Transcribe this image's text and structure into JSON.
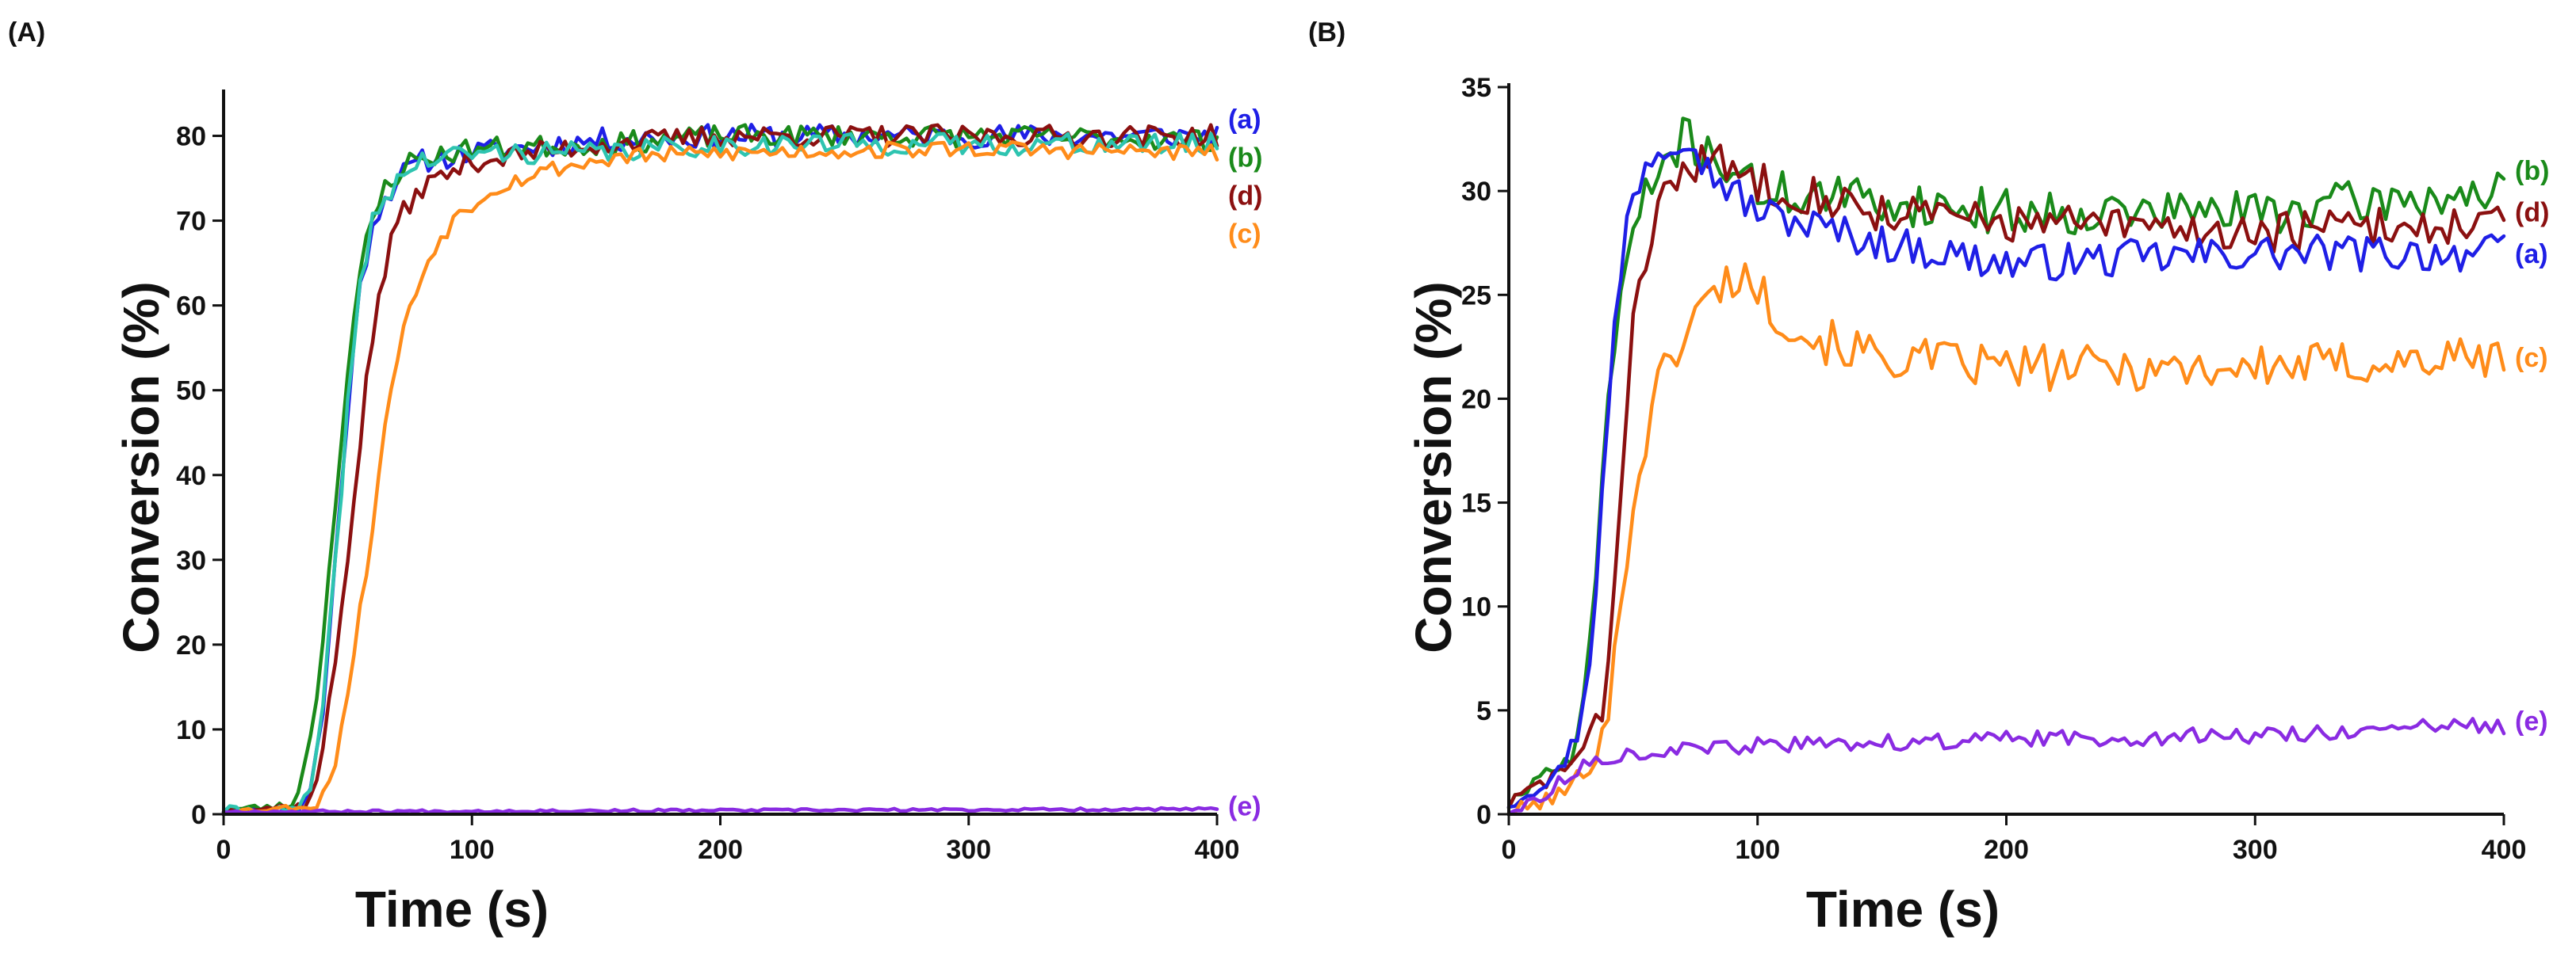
{
  "chart_data": [
    {
      "type": "line",
      "panel_label": "(A)",
      "xlabel": "Time (s)",
      "ylabel": "Conversion (%)",
      "xlim": [
        0,
        400
      ],
      "ylim": [
        0,
        85
      ],
      "xticks": [
        0,
        100,
        200,
        300,
        400
      ],
      "yticks": [
        0,
        10,
        20,
        30,
        40,
        50,
        60,
        70,
        80
      ],
      "grid": false,
      "series": [
        {
          "name": "(a)",
          "color": "#1f1fe6",
          "end_label_value": 82,
          "noise": 1.4,
          "seed": 11,
          "points": [
            [
              0,
              0.5
            ],
            [
              30,
              0.5
            ],
            [
              35,
              3
            ],
            [
              40,
              12
            ],
            [
              45,
              30
            ],
            [
              50,
              48
            ],
            [
              55,
              62
            ],
            [
              60,
              70
            ],
            [
              70,
              75
            ],
            [
              80,
              77
            ],
            [
              100,
              78
            ],
            [
              150,
              79.5
            ],
            [
              200,
              80
            ],
            [
              300,
              80
            ],
            [
              400,
              80
            ]
          ]
        },
        {
          "name": "(b)",
          "color": "#1a8a1a",
          "end_label_value": 77.5,
          "noise": 1.3,
          "seed": 23,
          "points": [
            [
              0,
              0.5
            ],
            [
              28,
              1
            ],
            [
              33,
              6
            ],
            [
              38,
              15
            ],
            [
              43,
              30
            ],
            [
              48,
              47
            ],
            [
              53,
              60
            ],
            [
              58,
              68
            ],
            [
              65,
              74
            ],
            [
              75,
              77
            ],
            [
              100,
              78.5
            ],
            [
              150,
              79
            ],
            [
              200,
              80
            ],
            [
              300,
              80
            ],
            [
              400,
              79.5
            ]
          ]
        },
        {
          "name": "(d)",
          "color": "#8b1010",
          "end_label_value": 73,
          "noise": 1.3,
          "seed": 37,
          "points": [
            [
              0,
              0.5
            ],
            [
              33,
              1
            ],
            [
              38,
              4
            ],
            [
              45,
              18
            ],
            [
              52,
              36
            ],
            [
              58,
              52
            ],
            [
              63,
              62
            ],
            [
              70,
              70
            ],
            [
              80,
              74
            ],
            [
              100,
              77
            ],
            [
              150,
              79
            ],
            [
              200,
              80
            ],
            [
              300,
              80
            ],
            [
              400,
              80
            ]
          ]
        },
        {
          "name": "",
          "color": "#2ec4b0",
          "end_label_value": null,
          "noise": 1.3,
          "seed": 41,
          "points": [
            [
              0,
              0.5
            ],
            [
              30,
              0.5
            ],
            [
              35,
              3
            ],
            [
              40,
              12
            ],
            [
              45,
              30
            ],
            [
              50,
              48
            ],
            [
              55,
              62
            ],
            [
              60,
              70
            ],
            [
              70,
              75
            ],
            [
              80,
              77
            ],
            [
              100,
              78
            ],
            [
              150,
              78
            ],
            [
              200,
              79
            ],
            [
              300,
              79
            ],
            [
              400,
              79
            ]
          ]
        },
        {
          "name": "(c)",
          "color": "#ff8c1a",
          "end_label_value": 68.5,
          "noise": 1.0,
          "seed": 53,
          "points": [
            [
              0,
              0.3
            ],
            [
              38,
              1
            ],
            [
              45,
              6
            ],
            [
              52,
              18
            ],
            [
              60,
              34
            ],
            [
              67,
              50
            ],
            [
              75,
              60
            ],
            [
              85,
              67
            ],
            [
              95,
              71
            ],
            [
              110,
              74
            ],
            [
              130,
              76
            ],
            [
              160,
              77.5
            ],
            [
              200,
              78
            ],
            [
              300,
              78.5
            ],
            [
              400,
              78
            ]
          ]
        },
        {
          "name": "(e)",
          "color": "#8a2be2",
          "end_label_value": 1,
          "noise": 0.45,
          "seed": 67,
          "points": [
            [
              0,
              0.3
            ],
            [
              400,
              0.6
            ]
          ]
        }
      ]
    },
    {
      "type": "line",
      "panel_label": "(B)",
      "xlabel": "Time (s)",
      "ylabel": "Conversion (%)",
      "xlim": [
        0,
        400
      ],
      "ylim": [
        0,
        35
      ],
      "xticks": [
        0,
        100,
        200,
        300,
        400
      ],
      "yticks": [
        0,
        5,
        10,
        15,
        20,
        25,
        30,
        35
      ],
      "grid": false,
      "series": [
        {
          "name": "(b)",
          "color": "#1a8a1a",
          "end_label_value": 31,
          "noise": 1.1,
          "seed": 71,
          "points": [
            [
              0,
              0.5
            ],
            [
              10,
              1.5
            ],
            [
              20,
              2
            ],
            [
              25,
              3
            ],
            [
              30,
              5
            ],
            [
              35,
              12
            ],
            [
              40,
              20
            ],
            [
              45,
              25
            ],
            [
              50,
              28
            ],
            [
              60,
              31
            ],
            [
              70,
              32.5
            ],
            [
              80,
              32
            ],
            [
              90,
              31
            ],
            [
              100,
              30
            ],
            [
              150,
              29.5
            ],
            [
              200,
              29
            ],
            [
              300,
              29
            ],
            [
              400,
              30
            ]
          ]
        },
        {
          "name": "(d)",
          "color": "#8b1010",
          "end_label_value": 29,
          "noise": 1.0,
          "seed": 83,
          "points": [
            [
              0,
              0.5
            ],
            [
              20,
              2
            ],
            [
              30,
              3
            ],
            [
              38,
              5
            ],
            [
              42,
              10
            ],
            [
              46,
              18
            ],
            [
              52,
              26
            ],
            [
              60,
              29
            ],
            [
              70,
              31
            ],
            [
              80,
              31.5
            ],
            [
              90,
              31
            ],
            [
              100,
              30.5
            ],
            [
              150,
              29
            ],
            [
              200,
              28.5
            ],
            [
              300,
              28
            ],
            [
              400,
              28.5
            ]
          ]
        },
        {
          "name": "(a)",
          "color": "#1f1fe6",
          "end_label_value": 27,
          "noise": 0.9,
          "seed": 97,
          "points": [
            [
              0,
              0.5
            ],
            [
              20,
              2
            ],
            [
              28,
              4
            ],
            [
              33,
              8
            ],
            [
              38,
              16
            ],
            [
              43,
              24
            ],
            [
              48,
              29
            ],
            [
              55,
              31.5
            ],
            [
              65,
              32.5
            ],
            [
              72,
              33
            ],
            [
              80,
              31
            ],
            [
              100,
              29
            ],
            [
              150,
              27.5
            ],
            [
              200,
              26.5
            ],
            [
              300,
              27
            ],
            [
              400,
              27
            ]
          ]
        },
        {
          "name": "(c)",
          "color": "#ff8c1a",
          "end_label_value": 22,
          "noise": 1.1,
          "seed": 101,
          "points": [
            [
              0,
              0
            ],
            [
              22,
              1
            ],
            [
              30,
              2
            ],
            [
              35,
              3
            ],
            [
              40,
              5
            ],
            [
              45,
              10
            ],
            [
              50,
              15
            ],
            [
              58,
              20
            ],
            [
              65,
              22
            ],
            [
              75,
              24
            ],
            [
              85,
              25.5
            ],
            [
              95,
              26
            ],
            [
              105,
              24.5
            ],
            [
              120,
              23
            ],
            [
              150,
              22
            ],
            [
              200,
              21.5
            ],
            [
              300,
              21.5
            ],
            [
              400,
              22
            ]
          ]
        },
        {
          "name": "(e)",
          "color": "#8a2be2",
          "end_label_value": 4.5,
          "noise": 0.7,
          "seed": 113,
          "points": [
            [
              0,
              0
            ],
            [
              15,
              1
            ],
            [
              25,
              2
            ],
            [
              40,
              2.8
            ],
            [
              60,
              3
            ],
            [
              100,
              3.3
            ],
            [
              200,
              3.6
            ],
            [
              300,
              3.8
            ],
            [
              400,
              4.3
            ]
          ]
        }
      ]
    }
  ]
}
